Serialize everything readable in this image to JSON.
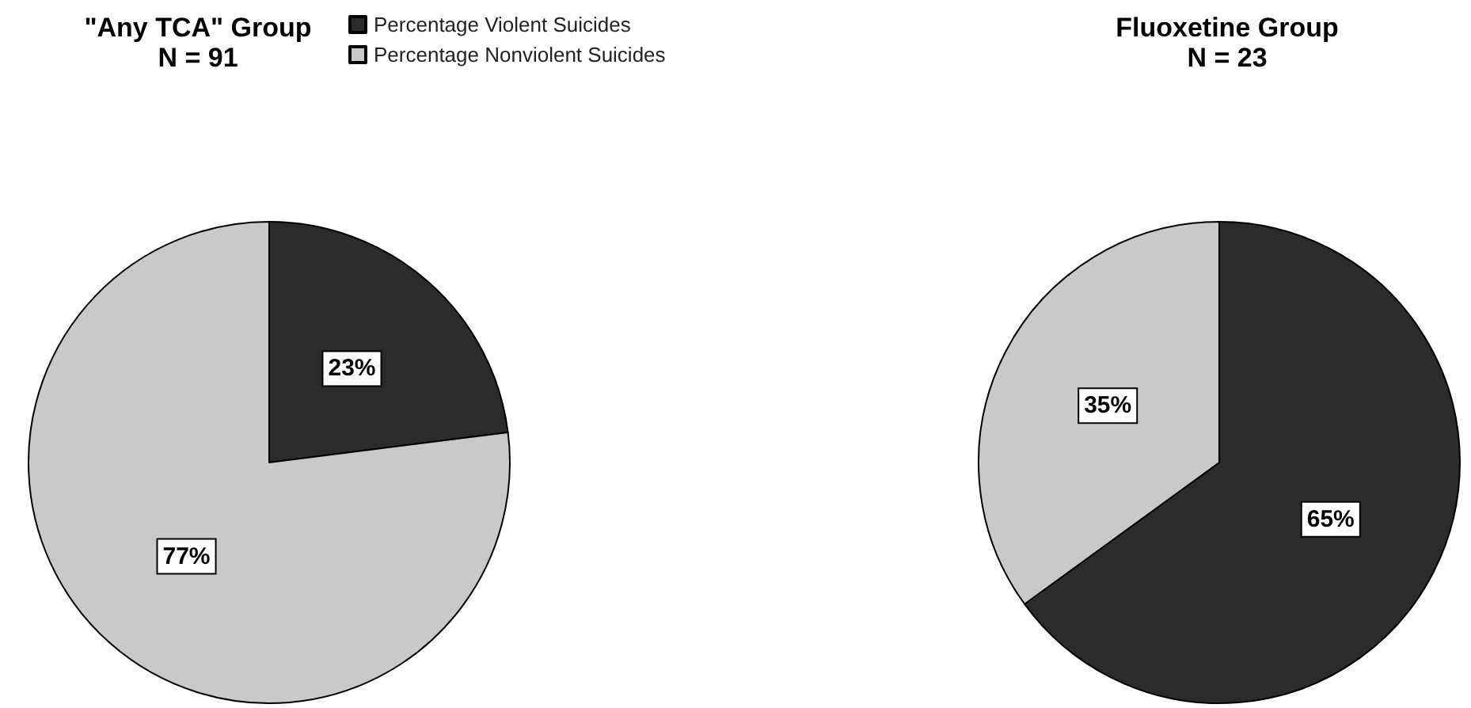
{
  "chart_data": [
    {
      "type": "pie",
      "title": "\"Any TCA\" Group",
      "subtitle": "N = 91",
      "categories": [
        "Percentage Violent Suicides",
        "Percentage Nonviolent Suicides"
      ],
      "values": [
        23,
        77
      ],
      "value_labels": [
        "23%",
        "77%"
      ],
      "colors": [
        "#2b2b2b",
        "#c9c9c9"
      ],
      "legend": "top right"
    },
    {
      "type": "pie",
      "title": "Fluoxetine Group",
      "subtitle": "N = 23",
      "categories": [
        null,
        null
      ],
      "values": [
        65,
        35
      ],
      "value_labels": [
        "65%",
        "35%"
      ],
      "colors": [
        "#2b2b2b",
        "#c9c9c9"
      ]
    }
  ]
}
